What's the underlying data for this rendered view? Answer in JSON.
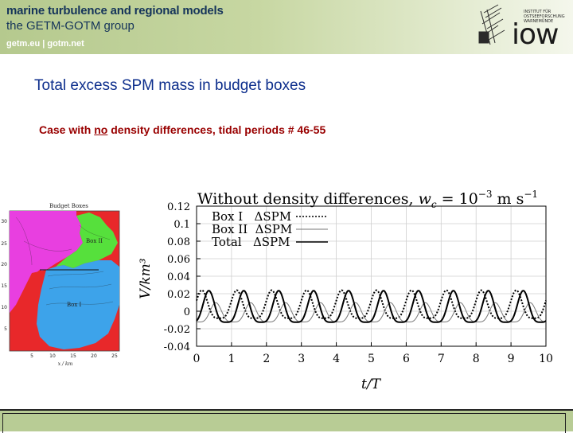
{
  "header": {
    "line1": "marine turbulence and regional models",
    "line2": "the GETM-GOTM group",
    "links": "getm.eu  |  gotm.net",
    "logo_small_text": [
      "INSTITUT FÜR",
      "OSTSEEFORSCHUNG",
      "WARNEMÜNDE"
    ],
    "logo_word": "iow"
  },
  "slide": {
    "title": "Total excess SPM mass in budget boxes",
    "subtitle_pre": "Case with ",
    "subtitle_no": "no",
    "subtitle_post": " density differences, tidal periods # 46-55"
  },
  "map": {
    "title": "Budget Boxes",
    "box2_label": "Box II",
    "box1_label": "Box I",
    "xlabel": "x / km",
    "yticks": [
      "30",
      "25",
      "20",
      "15",
      "10",
      "5"
    ],
    "xticks": [
      "5",
      "10",
      "15",
      "20",
      "25"
    ],
    "colors": {
      "land": "#e8282a",
      "shoal": "#e83fe0",
      "box1": "#3da3ea",
      "box2": "#56e03c"
    }
  },
  "chart_data": {
    "type": "line",
    "title": "Without density differences,  w_c = 10^{-3} m s^{-1}",
    "title_parts": {
      "prefix": "Without  density  differences,",
      "w": "w",
      "sub": "c",
      "eq": " = 10",
      "exp": "−3",
      "unit": " m s",
      "unit_exp": "−1"
    },
    "xlabel": "t/T",
    "ylabel": "V/km³",
    "xlim": [
      0,
      10
    ],
    "ylim": [
      -0.04,
      0.12
    ],
    "xticks": [
      "0",
      "1",
      "2",
      "3",
      "4",
      "5",
      "6",
      "7",
      "8",
      "9",
      "10"
    ],
    "yticks": [
      "0.12",
      "0.1",
      "0.08",
      "0.06",
      "0.04",
      "0.02",
      "0",
      "-0.02",
      "-0.04"
    ],
    "legend_position": "top-left",
    "grid": true,
    "series": [
      {
        "name": "Box I   ΔSPM",
        "style": "dotted",
        "color": "#000000",
        "mean": 0.004,
        "amplitude": 0.016,
        "phase": 0.15
      },
      {
        "name": "Box II  ΔSPM",
        "style": "solid-thin",
        "color": "#777777",
        "mean": -0.004,
        "amplitude": 0.011,
        "phase": 0.55
      },
      {
        "name": "Total   ΔSPM",
        "style": "solid-thick",
        "color": "#000000",
        "mean": 0.001,
        "amplitude": 0.018,
        "phase": 0.35
      }
    ]
  }
}
